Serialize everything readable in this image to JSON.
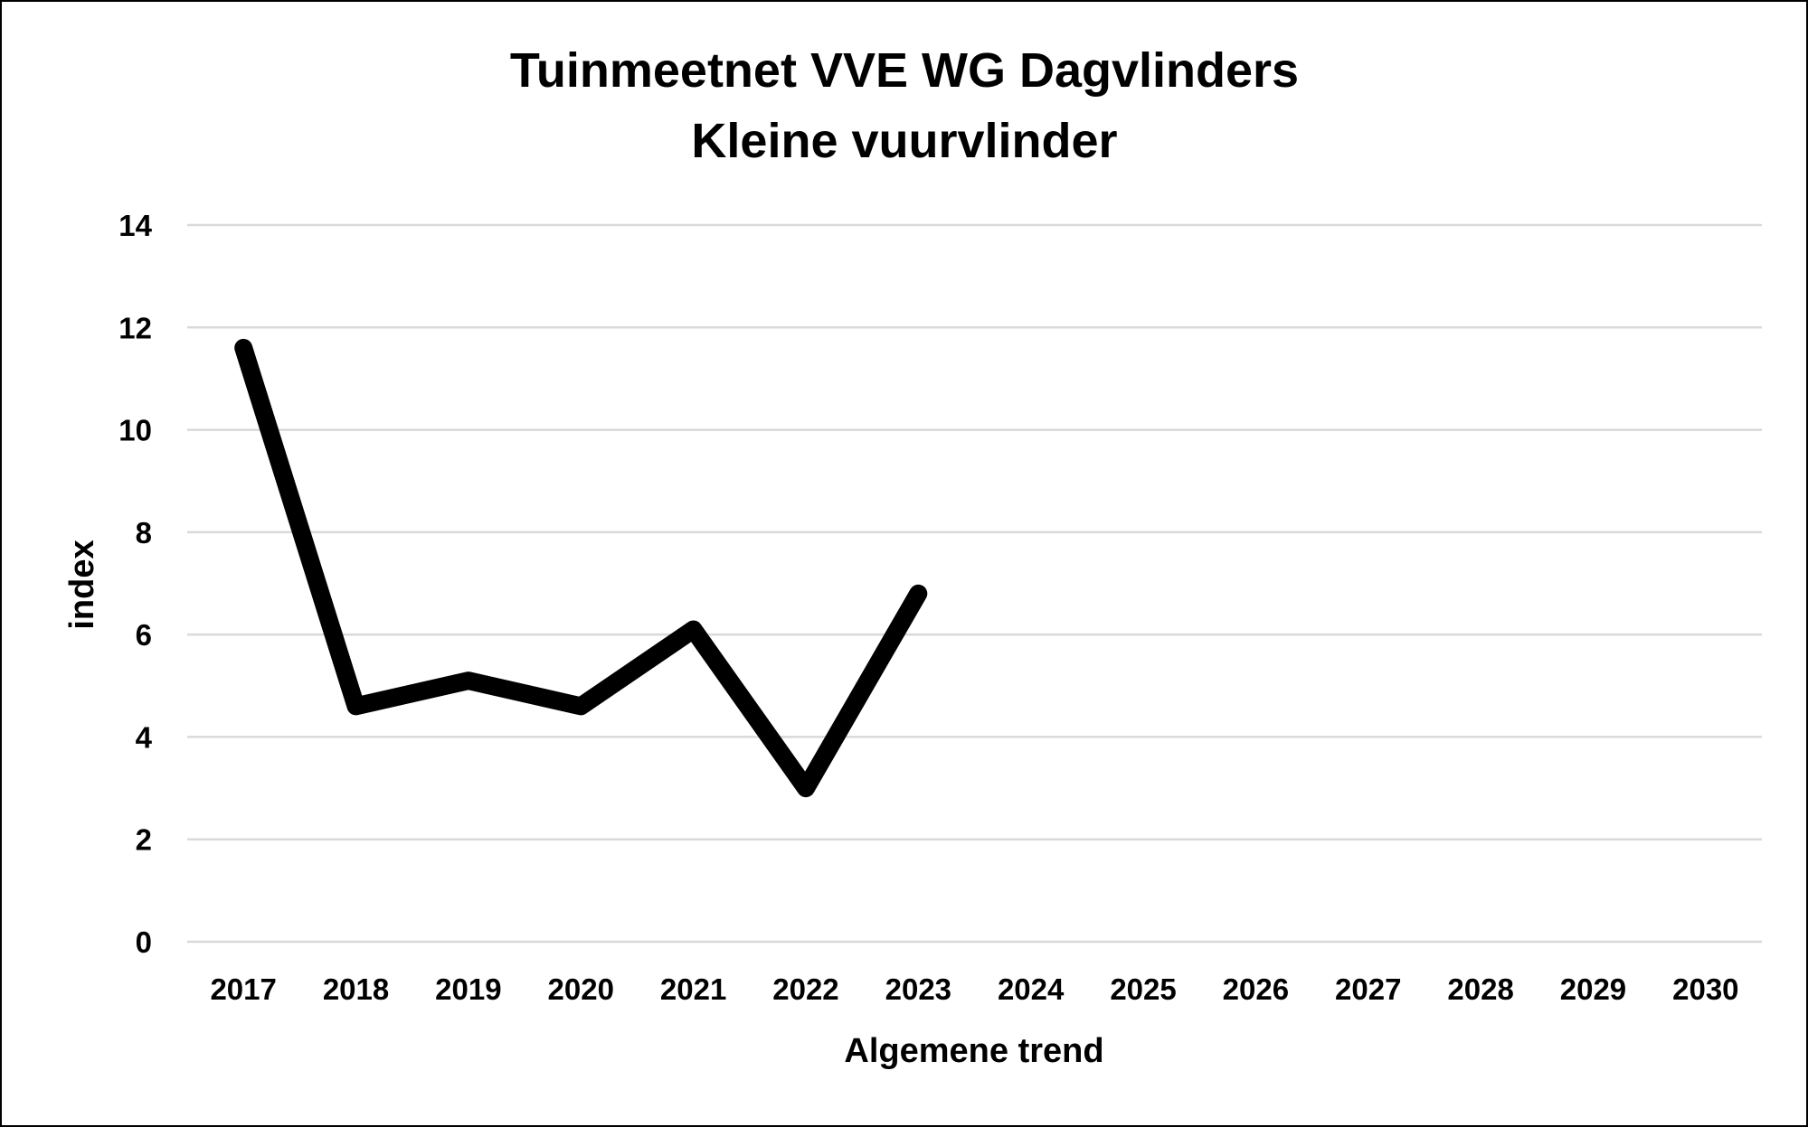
{
  "chart_data": {
    "type": "line",
    "title": [
      "Tuinmeetnet VVE WG Dagvlinders",
      "Kleine vuurvlinder"
    ],
    "xlabel": "Algemene trend",
    "ylabel": "index",
    "categories": [
      "2017",
      "2018",
      "2019",
      "2020",
      "2021",
      "2022",
      "2023",
      "2024",
      "2025",
      "2026",
      "2027",
      "2028",
      "2029",
      "2030"
    ],
    "yticks": [
      "0",
      "2",
      "4",
      "6",
      "8",
      "10",
      "12",
      "14"
    ],
    "ylim": [
      0,
      14
    ],
    "grid": true,
    "legend": "none",
    "series": [
      {
        "name": "Kleine vuurvlinder",
        "values": [
          11.6,
          4.6,
          5.1,
          4.6,
          6.1,
          3.0,
          6.8,
          null,
          null,
          null,
          null,
          null,
          null,
          null
        ]
      }
    ],
    "colors": {
      "line": "#000000",
      "grid": "#d9d9d9",
      "background": "#ffffff"
    }
  }
}
